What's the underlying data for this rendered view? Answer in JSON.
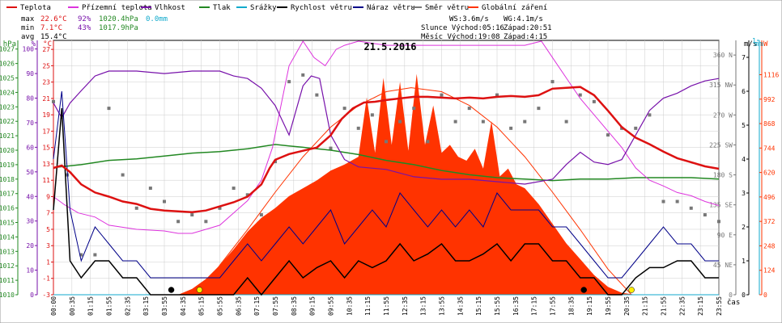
{
  "legend": [
    {
      "label": "Teplota",
      "color": "#dd1111"
    },
    {
      "label": "Přízemní teplota",
      "color": "#dd33dd"
    },
    {
      "label": "Vlhkost",
      "color": "#7711aa"
    },
    {
      "label": "Tlak",
      "color": "#228822"
    },
    {
      "label": "Srážky",
      "color": "#11aacc"
    },
    {
      "label": "Rychlost větru",
      "color": "#000000"
    },
    {
      "label": "Náraz větru",
      "color": "#000088"
    },
    {
      "label": "Směr větru",
      "color": "#777777"
    },
    {
      "label": "Globální záření",
      "color": "#ff3300"
    }
  ],
  "stats": {
    "max": {
      "label": "max",
      "temp": "22.6°C",
      "hum": "92%",
      "press": "1020.4hPa",
      "rain": "0.0mm"
    },
    "min": {
      "label": "min",
      "temp": "7.1°C",
      "hum": "43%",
      "press": "1017.9hPa"
    },
    "avg": {
      "label": "avg",
      "temp": "15.4°C"
    }
  },
  "info": {
    "ws": "WS:3.6m/s",
    "wg": "WG:4.1m/s",
    "sun": "Slunce Východ:05:16",
    "sun_set": "Západ:20:51",
    "moon": "Měsíc  Východ:19:08",
    "moon_set": "Západ:4:15"
  },
  "chart_data": {
    "type": "line",
    "title": "21.5.2016",
    "x_label": "čas",
    "x_ticks": [
      "00:00",
      "00:35",
      "01:15",
      "01:55",
      "02:35",
      "03:15",
      "03:55",
      "04:35",
      "05:15",
      "05:55",
      "06:35",
      "07:15",
      "07:55",
      "08:35",
      "09:15",
      "09:55",
      "10:35",
      "11:15",
      "11:55",
      "12:35",
      "13:15",
      "13:55",
      "14:35",
      "15:15",
      "15:55",
      "16:35",
      "17:15",
      "17:55",
      "18:35",
      "19:15",
      "19:55",
      "20:35",
      "21:15",
      "21:55",
      "22:35",
      "23:15",
      "23:55"
    ],
    "axes": {
      "hpa": {
        "unit": "hPa",
        "ticks": [
          "1027",
          "1026",
          "1025",
          "1024",
          "1023",
          "1022",
          "1021",
          "1020",
          "1019",
          "1018",
          "1017",
          "1016",
          "1015",
          "1014",
          "1013",
          "1012",
          "1011",
          "1010"
        ],
        "range": [
          1010,
          1027.6
        ],
        "color": "#228822"
      },
      "pct": {
        "unit": "%",
        "ticks": [
          "100",
          "90",
          "80",
          "70",
          "60",
          "50",
          "40",
          "30",
          "20",
          "10",
          "0"
        ],
        "range": [
          0,
          103.5
        ],
        "color": "#7711aa"
      },
      "degc": {
        "unit": "°C",
        "ticks": [
          "27",
          "25",
          "23",
          "21",
          "19",
          "17",
          "15",
          "13",
          "11",
          "9",
          "7",
          "5",
          "3",
          "1",
          "-1",
          "-3"
        ],
        "range": [
          -3,
          28.1
        ],
        "color": "#dd1111"
      },
      "dir": {
        "ticks": [
          "360 N",
          "315 NW",
          "270 W",
          "225 SW",
          "180 S",
          "135 SE",
          "90 E",
          "45 NE",
          "0"
        ],
        "range": [
          0,
          382
        ],
        "color": "#777777"
      },
      "ms": {
        "unit": "m/s",
        "ticks": [
          "7",
          "6",
          "5",
          "4",
          "3",
          "2",
          "1",
          "0"
        ],
        "range": [
          0,
          7.5
        ],
        "color": "#000000"
      },
      "mm": {
        "unit": "mm",
        "ticks": [
          "1"
        ],
        "range": [
          0,
          1
        ],
        "color": "#11aacc"
      },
      "w": {
        "unit": "W",
        "ticks": [
          "1116",
          "992",
          "868",
          "744",
          "620",
          "496",
          "372",
          "248",
          "124",
          "0"
        ],
        "range": [
          0,
          1290
        ],
        "color": "#ff3300"
      }
    },
    "series": [
      {
        "name": "Teplota",
        "axis": "degc",
        "color": "#dd1111",
        "x": [
          0,
          0.3,
          0.6,
          1,
          1.5,
          2,
          2.5,
          3,
          3.5,
          4,
          4.5,
          5,
          5.5,
          6,
          6.5,
          7,
          7.5,
          7.8,
          8,
          8.5,
          9,
          9.5,
          10,
          10.4,
          10.8,
          11.2,
          11.6,
          12,
          12.5,
          13,
          13.5,
          14,
          14.5,
          15,
          15.5,
          16,
          16.5,
          17,
          17.5,
          18,
          18.5,
          19,
          19.5,
          20,
          20.5,
          21,
          21.5,
          22,
          22.5,
          23,
          23.5,
          24
        ],
        "y": [
          12.5,
          12.8,
          12,
          10.5,
          9.5,
          9,
          8.4,
          8.1,
          7.5,
          7.3,
          7.2,
          7.1,
          7.3,
          7.8,
          8.3,
          9,
          10.5,
          12.5,
          13.5,
          14.2,
          14.6,
          15,
          16.5,
          18.5,
          19.8,
          20.5,
          20.6,
          20.8,
          21,
          21.2,
          21.2,
          21.1,
          21,
          21.1,
          21,
          21.2,
          21.3,
          21.2,
          21.4,
          22.2,
          22.3,
          22.4,
          21.4,
          19.5,
          17.5,
          16.2,
          15.4,
          14.5,
          13.7,
          13.2,
          12.7,
          12.4
        ]
      },
      {
        "name": "Přízemní teplota",
        "axis": "degc",
        "color": "#dd33dd",
        "x": [
          0,
          0.4,
          0.9,
          1.5,
          2,
          3,
          4,
          4.5,
          5,
          5.5,
          6,
          6.5,
          7,
          7.5,
          7.9,
          8.2,
          8.5,
          9,
          9.4,
          9.8,
          10.2,
          10.5,
          11,
          12,
          13,
          14,
          15,
          16,
          17,
          17.6,
          18,
          18.5,
          19,
          19.5,
          20,
          20.5,
          21,
          21.5,
          22,
          22.5,
          23,
          23.5,
          24
        ],
        "y": [
          9,
          8,
          7,
          6.5,
          5.5,
          5,
          4.8,
          4.5,
          4.5,
          5,
          5.5,
          7,
          8.5,
          11,
          15,
          20,
          25,
          28,
          26,
          25,
          27,
          27.5,
          28,
          27.5,
          27.5,
          27.5,
          27.5,
          27.5,
          27.5,
          28,
          26,
          23.5,
          21,
          19,
          17,
          15,
          12.5,
          11,
          10.3,
          9.5,
          9.1,
          8.4,
          7.9
        ]
      },
      {
        "name": "Vlhkost",
        "axis": "pct",
        "color": "#7711aa",
        "x": [
          0,
          0.3,
          0.6,
          1,
          1.5,
          2,
          3,
          4,
          5,
          6,
          6.5,
          7,
          7.5,
          8,
          8.5,
          9,
          9.3,
          9.6,
          10,
          10.5,
          11,
          12,
          13,
          14,
          15,
          16,
          17,
          18,
          18.5,
          19,
          19.5,
          20,
          20.5,
          21,
          21.5,
          22,
          22.5,
          23,
          23.5,
          24
        ],
        "y": [
          78,
          72,
          78,
          83,
          89,
          91,
          91,
          90,
          91,
          91,
          89,
          88,
          84,
          77,
          65,
          85,
          89,
          88,
          65,
          55,
          52,
          51,
          48,
          47,
          47,
          46,
          45,
          47,
          53,
          58,
          54,
          53,
          55,
          65,
          75,
          80,
          82,
          85,
          87,
          88
        ]
      },
      {
        "name": "Tlak",
        "axis": "hpa",
        "color": "#228822",
        "x": [
          0,
          1,
          2,
          3,
          4,
          5,
          6,
          7,
          8,
          8.5,
          9,
          10,
          11,
          12,
          13,
          14,
          15,
          16,
          17,
          18,
          19,
          20,
          21,
          22,
          23,
          24
        ],
        "y": [
          1018.8,
          1019,
          1019.3,
          1019.4,
          1019.6,
          1019.8,
          1019.9,
          1020.1,
          1020.4,
          1020.3,
          1020.2,
          1020,
          1019.7,
          1019.3,
          1019,
          1018.6,
          1018.3,
          1018.1,
          1018,
          1017.9,
          1018,
          1018,
          1018.1,
          1018.1,
          1018.1,
          1018
        ]
      },
      {
        "name": "Srážky",
        "axis": "mm",
        "color": "#11aacc",
        "x": [
          0,
          24
        ],
        "y": [
          0,
          0
        ]
      },
      {
        "name": "Rychlost větru",
        "axis": "ms",
        "color": "#000000",
        "x": [
          0,
          0.3,
          0.6,
          1,
          1.5,
          2,
          2.5,
          3,
          3.5,
          4,
          4.5,
          5,
          5.5,
          6,
          6.5,
          7,
          7.5,
          8,
          8.5,
          9,
          9.5,
          10,
          10.5,
          11,
          11.5,
          12,
          12.5,
          13,
          13.5,
          14,
          14.5,
          15,
          15.5,
          16,
          16.5,
          17,
          17.5,
          18,
          18.5,
          19,
          19.5,
          20,
          20.5,
          21,
          21.5,
          22,
          22.5,
          23,
          23.5,
          24
        ],
        "y": [
          2.5,
          5.5,
          1,
          0.5,
          1,
          1,
          0.5,
          0.5,
          0,
          0,
          0,
          0,
          0,
          0,
          0,
          0.5,
          0,
          0.5,
          1,
          0.5,
          0.8,
          1,
          0.5,
          1,
          0.8,
          1,
          1.5,
          1,
          1.2,
          1.5,
          1,
          1,
          1.2,
          1.5,
          1,
          1.5,
          1.5,
          1,
          1,
          0.5,
          0.5,
          0,
          0,
          0.5,
          0.8,
          0.8,
          1,
          1,
          0.5,
          0.5
        ]
      },
      {
        "name": "Náraz větru",
        "axis": "ms",
        "color": "#000088",
        "x": [
          0,
          0.3,
          0.6,
          1,
          1.5,
          2,
          2.5,
          3,
          3.5,
          4,
          4.5,
          5,
          5.5,
          6,
          6.5,
          7,
          7.5,
          8,
          8.5,
          9,
          9.5,
          10,
          10.5,
          11,
          11.5,
          12,
          12.5,
          13,
          13.5,
          14,
          14.5,
          15,
          15.5,
          16,
          16.5,
          17,
          17.5,
          18,
          18.5,
          19,
          19.5,
          20,
          20.5,
          21,
          21.5,
          22,
          22.5,
          23,
          23.5,
          24
        ],
        "y": [
          4,
          6,
          2.5,
          1,
          2,
          1.5,
          1,
          1,
          0.5,
          0.5,
          0.5,
          0.5,
          0.5,
          0.5,
          1,
          1.5,
          1,
          1.5,
          2,
          1.5,
          2,
          2.5,
          1.5,
          2,
          2.5,
          2,
          3,
          2.5,
          2,
          2.5,
          2,
          2.5,
          2,
          3,
          2.5,
          2.5,
          2.5,
          2,
          2,
          1.5,
          1,
          0.5,
          0.5,
          1,
          1.5,
          2,
          1.5,
          1.5,
          1,
          1
        ]
      },
      {
        "name": "Směr větru",
        "axis": "dir",
        "color": "#777777",
        "x": [
          0,
          0.5,
          1,
          1.5,
          2,
          2.5,
          3,
          3.5,
          4,
          4.5,
          5,
          5.5,
          6,
          6.5,
          7,
          7.5,
          8,
          8.5,
          9,
          9.5,
          10,
          10.5,
          11,
          11.5,
          12,
          12.5,
          13,
          13.5,
          14,
          14.5,
          15,
          15.5,
          16,
          16.5,
          17,
          17.5,
          18,
          18.5,
          19,
          19.5,
          20,
          20.5,
          21,
          21.5,
          22,
          22.5,
          23,
          23.5,
          24
        ],
        "y": [
          290,
          180,
          60,
          60,
          280,
          180,
          130,
          160,
          140,
          110,
          120,
          110,
          130,
          160,
          150,
          120,
          200,
          320,
          330,
          300,
          220,
          280,
          250,
          270,
          230,
          260,
          280,
          230,
          300,
          260,
          280,
          260,
          300,
          250,
          260,
          280,
          320,
          260,
          300,
          290,
          240,
          250,
          250,
          270,
          140,
          140,
          130,
          120,
          110
        ]
      },
      {
        "name": "Globální záření",
        "axis": "w",
        "color": "#ff3300",
        "x": [
          4.5,
          5,
          5.5,
          6,
          6.5,
          7,
          7.5,
          8,
          8.5,
          9,
          9.5,
          10,
          10.5,
          11,
          11.3,
          11.6,
          11.9,
          12.2,
          12.5,
          12.8,
          13.1,
          13.4,
          13.7,
          14,
          14.3,
          14.6,
          14.9,
          15.2,
          15.5,
          15.8,
          16.1,
          16.4,
          16.7,
          17,
          17.5,
          18,
          18.5,
          19,
          19.5,
          20,
          20.5,
          21
        ],
        "y": [
          0,
          30,
          80,
          150,
          230,
          320,
          390,
          440,
          500,
          540,
          580,
          630,
          660,
          700,
          1000,
          720,
          1100,
          760,
          1080,
          730,
          1120,
          760,
          960,
          720,
          760,
          700,
          680,
          740,
          640,
          880,
          600,
          640,
          560,
          540,
          460,
          360,
          260,
          180,
          100,
          40,
          10,
          0
        ]
      }
    ],
    "clear_sky_radiation": {
      "name": "",
      "axis": "w",
      "color": "#ff3300",
      "x": [
        5.27,
        6,
        7,
        8,
        9,
        10,
        11,
        12,
        12.9,
        14,
        15,
        16,
        17,
        18,
        19,
        20,
        20.85
      ],
      "y": [
        0,
        150,
        330,
        520,
        700,
        850,
        960,
        1030,
        1050,
        1030,
        960,
        850,
        700,
        520,
        330,
        130,
        0
      ]
    },
    "markers": [
      {
        "type": "moonset",
        "x": 4.25,
        "color": "#000000"
      },
      {
        "type": "sunrise",
        "x": 5.27,
        "color": "#ffee00"
      },
      {
        "type": "moonrise",
        "x": 19.13,
        "color": "#000000"
      },
      {
        "type": "sunset",
        "x": 20.85,
        "color": "#ffee00"
      }
    ]
  }
}
